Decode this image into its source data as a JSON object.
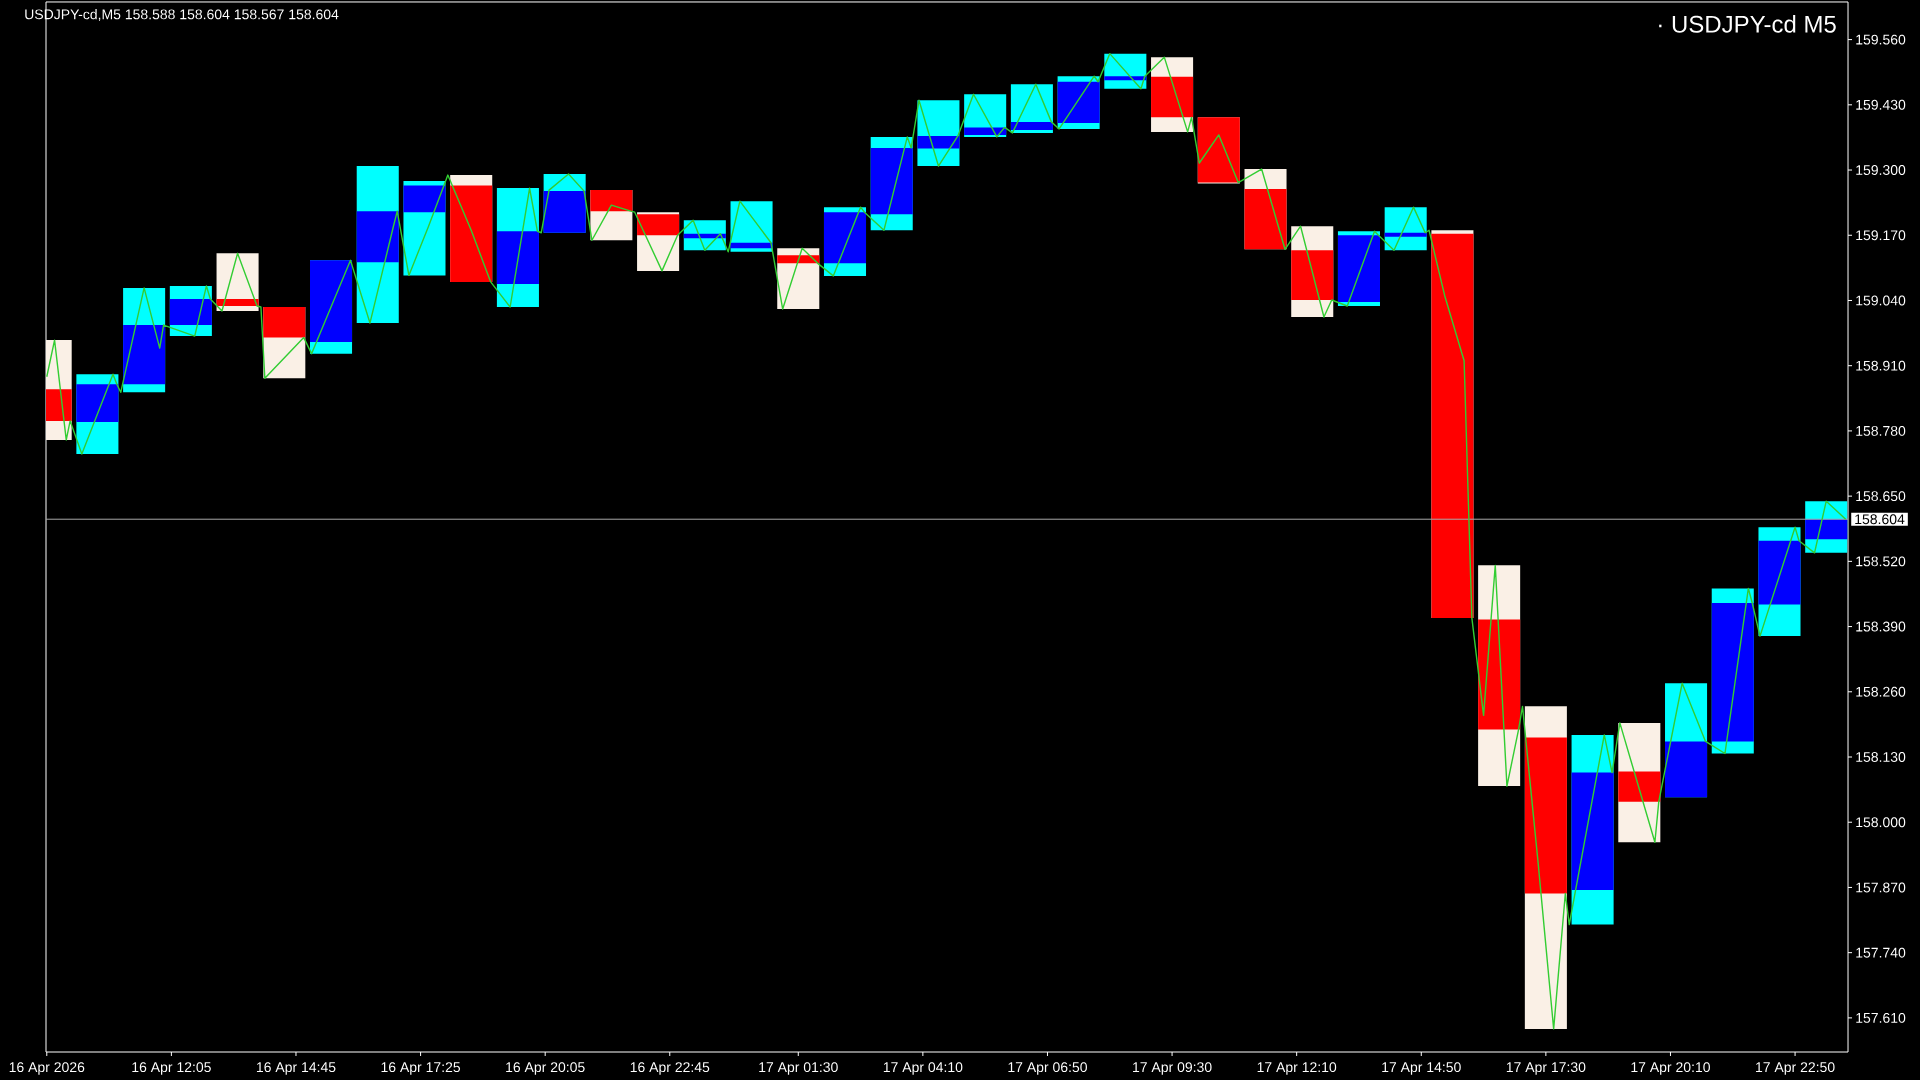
{
  "chart_data": {
    "type": "candlestick",
    "title": "USDJPY-cd,M5  158.588 158.604 158.567 158.604",
    "subtitle": "· USDJPY-cd M5",
    "xlim": [
      "2026-04-16T09:24",
      "2026-04-17T23:58"
    ],
    "ylim": [
      157.542,
      159.635
    ],
    "xticks": [
      {
        "value": "2026-04-16T09:25",
        "label": "16 Apr 2026"
      },
      {
        "value": "2026-04-16T12:05",
        "label": "16 Apr 12:05"
      },
      {
        "value": "2026-04-16T14:45",
        "label": "16 Apr 14:45"
      },
      {
        "value": "2026-04-16T17:25",
        "label": "16 Apr 17:25"
      },
      {
        "value": "2026-04-16T20:05",
        "label": "16 Apr 20:05"
      },
      {
        "value": "2026-04-16T22:45",
        "label": "16 Apr 22:45"
      },
      {
        "value": "2026-04-17T01:30",
        "label": "17 Apr 01:30"
      },
      {
        "value": "2026-04-17T04:10",
        "label": "17 Apr 04:10"
      },
      {
        "value": "2026-04-17T06:50",
        "label": "17 Apr 06:50"
      },
      {
        "value": "2026-04-17T09:30",
        "label": "17 Apr 09:30"
      },
      {
        "value": "2026-04-17T12:10",
        "label": "17 Apr 12:10"
      },
      {
        "value": "2026-04-17T14:50",
        "label": "17 Apr 14:50"
      },
      {
        "value": "2026-04-17T17:30",
        "label": "17 Apr 17:30"
      },
      {
        "value": "2026-04-17T20:10",
        "label": "17 Apr 20:10"
      },
      {
        "value": "2026-04-17T22:50",
        "label": "17 Apr 22:50"
      }
    ],
    "yticks": [
      {
        "value": 157.61,
        "label": "157.610"
      },
      {
        "value": 157.74,
        "label": "157.740"
      },
      {
        "value": 157.87,
        "label": "157.870"
      },
      {
        "value": 158.0,
        "label": "158.000"
      },
      {
        "value": 158.13,
        "label": "158.130"
      },
      {
        "value": 158.26,
        "label": "158.260"
      },
      {
        "value": 158.39,
        "label": "158.390"
      },
      {
        "value": 158.52,
        "label": "158.520"
      },
      {
        "value": 158.65,
        "label": "158.650"
      },
      {
        "value": 158.78,
        "label": "158.780"
      },
      {
        "value": 158.91,
        "label": "158.910"
      },
      {
        "value": 159.04,
        "label": "159.040"
      },
      {
        "value": 159.17,
        "label": "159.170"
      },
      {
        "value": 159.3,
        "label": "159.300"
      },
      {
        "value": 159.43,
        "label": "159.430"
      },
      {
        "value": 159.56,
        "label": "159.560"
      }
    ],
    "series": [
      {
        "x": [
          "2026-04-16T09:30",
          "2026-04-16T10:30",
          "2026-04-16T11:30",
          "2026-04-16T12:30",
          "2026-04-16T13:30",
          "2026-04-16T14:30",
          "2026-04-16T15:30",
          "2026-04-16T16:30",
          "2026-04-16T17:30",
          "2026-04-16T18:30",
          "2026-04-16T19:30",
          "2026-04-16T20:30",
          "2026-04-16T21:30",
          "2026-04-16T22:30",
          "2026-04-16T23:30",
          "2026-04-17T00:30",
          "2026-04-17T01:30",
          "2026-04-17T02:30",
          "2026-04-17T03:30",
          "2026-04-17T04:30",
          "2026-04-17T05:30",
          "2026-04-17T06:30",
          "2026-04-17T07:30",
          "2026-04-17T08:30",
          "2026-04-17T09:30",
          "2026-04-17T10:30",
          "2026-04-17T11:30",
          "2026-04-17T12:30",
          "2026-04-17T13:30",
          "2026-04-17T14:30",
          "2026-04-17T15:30",
          "2026-04-17T16:30",
          "2026-04-17T17:30",
          "2026-04-17T18:30",
          "2026-04-17T19:30",
          "2026-04-17T20:30",
          "2026-04-17T21:30",
          "2026-04-17T22:30",
          "2026-04-17T23:30"
        ],
        "ohlc": [
          [
            158.863,
            158.961,
            158.762,
            158.8
          ],
          [
            158.798,
            158.893,
            158.734,
            158.873
          ],
          [
            158.873,
            159.065,
            158.857,
            158.991
          ],
          [
            158.991,
            159.069,
            158.969,
            159.043
          ],
          [
            159.043,
            159.134,
            159.019,
            159.029
          ],
          [
            159.027,
            159.027,
            158.885,
            158.966
          ],
          [
            158.957,
            159.12,
            158.934,
            159.12
          ],
          [
            159.116,
            159.308,
            158.995,
            159.218
          ],
          [
            159.216,
            159.278,
            159.09,
            159.269
          ],
          [
            159.269,
            159.29,
            159.077,
            159.077
          ],
          [
            159.073,
            159.264,
            159.027,
            159.178
          ],
          [
            159.175,
            159.292,
            159.175,
            159.258
          ],
          [
            159.26,
            159.26,
            159.16,
            159.218
          ],
          [
            159.212,
            159.216,
            159.099,
            159.17
          ],
          [
            159.164,
            159.2,
            159.14,
            159.173
          ],
          [
            159.144,
            159.238,
            159.137,
            159.155
          ],
          [
            159.13,
            159.144,
            159.023,
            159.114
          ],
          [
            159.114,
            159.226,
            159.089,
            159.216
          ],
          [
            159.212,
            159.366,
            159.18,
            159.344
          ],
          [
            159.343,
            159.439,
            159.308,
            159.368
          ],
          [
            159.37,
            159.451,
            159.366,
            159.385
          ],
          [
            159.38,
            159.471,
            159.374,
            159.396
          ],
          [
            159.394,
            159.487,
            159.382,
            159.476
          ],
          [
            159.479,
            159.532,
            159.462,
            159.487
          ],
          [
            159.486,
            159.525,
            159.376,
            159.405
          ],
          [
            159.405,
            159.405,
            159.273,
            159.275
          ],
          [
            159.262,
            159.302,
            159.142,
            159.142
          ],
          [
            159.14,
            159.188,
            159.007,
            159.041
          ],
          [
            159.037,
            159.178,
            159.029,
            159.17
          ],
          [
            159.167,
            159.226,
            159.14,
            159.175
          ],
          [
            159.173,
            159.18,
            158.407,
            158.407
          ],
          [
            158.404,
            158.512,
            158.072,
            158.185
          ],
          [
            158.169,
            158.231,
            157.588,
            157.858
          ],
          [
            157.865,
            158.174,
            157.796,
            158.099
          ],
          [
            158.101,
            158.198,
            157.96,
            158.041
          ],
          [
            158.05,
            158.277,
            158.05,
            158.161
          ],
          [
            158.161,
            158.466,
            158.137,
            158.437
          ],
          [
            158.434,
            158.588,
            158.371,
            158.561
          ],
          [
            158.564,
            158.64,
            158.537,
            158.604
          ]
        ],
        "colors": [
          [
            "#faf0e6",
            "#ff0000"
          ],
          [
            "#00ffff",
            "#0000ff"
          ],
          [
            "#00ffff",
            "#0000ff"
          ],
          [
            "#00ffff",
            "#0000ff"
          ],
          [
            "#faf0e6",
            "#ff0000"
          ],
          [
            "#faf0e6",
            "#ff0000"
          ],
          [
            "#00ffff",
            "#0000ff"
          ],
          [
            "#00ffff",
            "#0000ff"
          ],
          [
            "#00ffff",
            "#0000ff"
          ],
          [
            "#faf0e6",
            "#ff0000"
          ],
          [
            "#00ffff",
            "#0000ff"
          ],
          [
            "#00ffff",
            "#0000ff"
          ],
          [
            "#faf0e6",
            "#ff0000"
          ],
          [
            "#faf0e6",
            "#ff0000"
          ],
          [
            "#00ffff",
            "#0000ff"
          ],
          [
            "#00ffff",
            "#0000ff"
          ],
          [
            "#faf0e6",
            "#ff0000"
          ],
          [
            "#00ffff",
            "#0000ff"
          ],
          [
            "#00ffff",
            "#0000ff"
          ],
          [
            "#00ffff",
            "#0000ff"
          ],
          [
            "#00ffff",
            "#0000ff"
          ],
          [
            "#00ffff",
            "#0000ff"
          ],
          [
            "#00ffff",
            "#0000ff"
          ],
          [
            "#00ffff",
            "#0000ff"
          ],
          [
            "#faf0e6",
            "#ff0000"
          ],
          [
            "#faf0e6",
            "#ff0000"
          ],
          [
            "#faf0e6",
            "#ff0000"
          ],
          [
            "#faf0e6",
            "#ff0000"
          ],
          [
            "#00ffff",
            "#0000ff"
          ],
          [
            "#00ffff",
            "#0000ff"
          ],
          [
            "#faf0e6",
            "#ff0000"
          ],
          [
            "#faf0e6",
            "#ff0000"
          ],
          [
            "#faf0e6",
            "#ff0000"
          ],
          [
            "#00ffff",
            "#0000ff"
          ],
          [
            "#faf0e6",
            "#ff0000"
          ],
          [
            "#00ffff",
            "#0000ff"
          ],
          [
            "#00ffff",
            "#0000ff"
          ],
          [
            "#00ffff",
            "#0000ff"
          ],
          [
            "#00ffff",
            "#0000ff"
          ]
        ]
      },
      {
        "type": "line",
        "color": "#32cd32",
        "x": [
          "2026-04-16T09:25",
          "2026-04-16T09:35",
          "2026-04-16T09:50",
          "2026-04-16T09:55",
          "2026-04-16T10:10",
          "2026-04-16T10:50",
          "2026-04-16T10:55",
          "2026-04-16T11:00",
          "2026-04-16T11:30",
          "2026-04-16T11:50",
          "2026-04-16T11:55",
          "2026-04-16T12:35",
          "2026-04-16T12:50",
          "2026-04-16T12:55",
          "2026-04-16T13:10",
          "2026-04-16T13:30",
          "2026-04-16T13:55",
          "2026-04-16T14:00",
          "2026-04-16T14:05",
          "2026-04-16T14:55",
          "2026-04-16T15:05",
          "2026-04-16T15:55",
          "2026-04-16T16:20",
          "2026-04-16T16:50",
          "2026-04-16T16:55",
          "2026-04-16T17:10",
          "2026-04-16T17:35",
          "2026-04-16T17:55",
          "2026-04-16T18:00",
          "2026-04-16T18:30",
          "2026-04-16T18:55",
          "2026-04-16T19:20",
          "2026-04-16T19:45",
          "2026-04-16T19:55",
          "2026-04-16T20:00",
          "2026-04-16T20:10",
          "2026-04-16T20:35",
          "2026-04-16T20:55",
          "2026-04-16T21:05",
          "2026-04-16T21:30",
          "2026-04-16T21:55",
          "2026-04-16T22:00",
          "2026-04-16T22:35",
          "2026-04-16T22:55",
          "2026-04-16T23:15",
          "2026-04-16T23:30",
          "2026-04-16T23:50",
          "2026-04-17T00:00",
          "2026-04-17T00:15",
          "2026-04-17T00:55",
          "2026-04-17T01:10",
          "2026-04-17T01:35",
          "2026-04-17T01:55",
          "2026-04-17T02:15",
          "2026-04-17T02:50",
          "2026-04-17T02:55",
          "2026-04-17T03:20",
          "2026-04-17T03:50",
          "2026-04-17T03:55",
          "2026-04-17T04:05",
          "2026-04-17T04:30",
          "2026-04-17T04:55",
          "2026-04-17T05:15",
          "2026-04-17T05:45",
          "2026-04-17T05:55",
          "2026-04-17T06:05",
          "2026-04-17T06:35",
          "2026-04-17T06:55",
          "2026-04-17T07:05",
          "2026-04-17T07:50",
          "2026-04-17T07:55",
          "2026-04-17T08:10",
          "2026-04-17T08:50",
          "2026-04-17T08:55",
          "2026-04-17T09:20",
          "2026-04-17T09:50",
          "2026-04-17T09:55",
          "2026-04-17T10:05",
          "2026-04-17T10:30",
          "2026-04-17T10:55",
          "2026-04-17T11:25",
          "2026-04-17T11:55",
          "2026-04-17T12:15",
          "2026-04-17T12:45",
          "2026-04-17T12:55",
          "2026-04-17T13:15",
          "2026-04-17T13:50",
          "2026-04-17T13:55",
          "2026-04-17T14:15",
          "2026-04-17T14:40",
          "2026-04-17T14:55",
          "2026-04-17T15:00",
          "2026-04-17T15:20",
          "2026-04-17T15:45",
          "2026-04-17T15:55",
          "2026-04-17T16:10",
          "2026-04-17T16:25",
          "2026-04-17T16:40",
          "2026-04-17T16:55",
          "2026-04-17T17:00",
          "2026-04-17T17:20",
          "2026-04-17T17:40",
          "2026-04-17T17:55",
          "2026-04-17T18:00",
          "2026-04-17T18:45",
          "2026-04-17T18:55",
          "2026-04-17T19:05",
          "2026-04-17T19:50",
          "2026-04-17T19:55",
          "2026-04-17T20:25",
          "2026-04-17T20:55",
          "2026-04-17T21:20",
          "2026-04-17T21:50",
          "2026-04-17T21:55",
          "2026-04-17T22:05",
          "2026-04-17T22:50",
          "2026-04-17T22:55",
          "2026-04-17T23:15",
          "2026-04-17T23:30",
          "2026-04-17T23:55"
        ],
        "values": [
          158.888,
          158.961,
          158.762,
          158.8,
          158.734,
          158.893,
          158.873,
          158.857,
          159.065,
          158.945,
          158.991,
          158.969,
          159.069,
          159.043,
          159.019,
          159.134,
          159.029,
          159.027,
          158.885,
          158.966,
          158.934,
          159.12,
          158.995,
          159.187,
          159.218,
          159.09,
          159.187,
          159.269,
          159.29,
          159.18,
          159.077,
          159.027,
          159.264,
          159.178,
          159.175,
          159.26,
          159.292,
          159.258,
          159.16,
          159.23,
          159.218,
          159.216,
          159.099,
          159.17,
          159.2,
          159.14,
          159.173,
          159.137,
          159.238,
          159.155,
          159.023,
          159.144,
          159.114,
          159.089,
          159.226,
          159.216,
          159.18,
          159.366,
          159.344,
          159.439,
          159.308,
          159.368,
          159.451,
          159.366,
          159.385,
          159.374,
          159.471,
          159.396,
          159.382,
          159.487,
          159.476,
          159.532,
          159.462,
          159.487,
          159.525,
          159.376,
          159.405,
          159.314,
          159.37,
          159.275,
          159.302,
          159.142,
          159.188,
          159.007,
          159.041,
          159.029,
          159.178,
          159.17,
          159.14,
          159.226,
          159.175,
          159.18,
          159.05,
          158.92,
          158.407,
          158.213,
          158.512,
          158.072,
          158.185,
          158.231,
          157.92,
          157.588,
          157.858,
          157.796,
          158.174,
          158.099,
          158.198,
          157.96,
          158.041,
          158.277,
          158.161,
          158.137,
          158.466,
          158.437,
          158.371,
          158.588,
          158.561,
          158.537,
          158.64,
          158.604
        ]
      }
    ],
    "ref_lines": [
      {
        "axis": "y",
        "value": 158.604,
        "label": "158.604",
        "color": "#a8a8a8"
      }
    ]
  }
}
